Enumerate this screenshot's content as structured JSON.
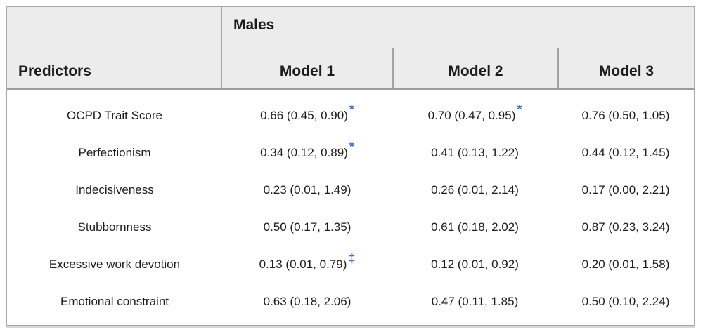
{
  "chart_data": {
    "type": "table",
    "group_header": "Males",
    "columns": [
      "Predictors",
      "Model 1",
      "Model 2",
      "Model 3"
    ],
    "rows": [
      [
        "OCPD Trait Score",
        "0.66 (0.45, 0.90)*",
        "0.70 (0.47, 0.95)*",
        "0.76 (0.50, 1.05)"
      ],
      [
        "Perfectionism",
        "0.34 (0.12, 0.89)*",
        "0.41 (0.13, 1.22)",
        "0.44 (0.12, 1.45)"
      ],
      [
        "Indecisiveness",
        "0.23 (0.01, 1.49)",
        "0.26 (0.01, 2.14)",
        "0.17 (0.00, 2.21)"
      ],
      [
        "Stubbornness",
        "0.50 (0.17, 1.35)",
        "0.61 (0.18, 2.02)",
        "0.87 (0.23, 3.24)"
      ],
      [
        "Excessive work devotion",
        "0.13 (0.01, 0.79)‡",
        "0.12 (0.01, 0.92)",
        "0.20 (0.01, 1.58)"
      ],
      [
        "Emotional constraint",
        "0.63 (0.18, 2.06)",
        "0.47 (0.11, 1.85)",
        "0.50 (0.10, 2.24)"
      ]
    ],
    "legend_position": "none",
    "grid": false
  },
  "table": {
    "predictors_header": "Predictors",
    "group_header": "Males",
    "model_headers": [
      "Model 1",
      "Model 2",
      "Model 3"
    ],
    "rows": [
      {
        "predictor": "OCPD Trait Score",
        "values": [
          {
            "text": "0.66 (0.45, 0.90)",
            "sup": "*"
          },
          {
            "text": "0.70 (0.47, 0.95)",
            "sup": "*"
          },
          {
            "text": "0.76 (0.50, 1.05)",
            "sup": ""
          }
        ]
      },
      {
        "predictor": "Perfectionism",
        "values": [
          {
            "text": "0.34 (0.12, 0.89)",
            "sup": "*"
          },
          {
            "text": "0.41 (0.13, 1.22)",
            "sup": ""
          },
          {
            "text": "0.44 (0.12, 1.45)",
            "sup": ""
          }
        ]
      },
      {
        "predictor": "Indecisiveness",
        "values": [
          {
            "text": "0.23 (0.01, 1.49)",
            "sup": ""
          },
          {
            "text": "0.26 (0.01, 2.14)",
            "sup": ""
          },
          {
            "text": "0.17 (0.00, 2.21)",
            "sup": ""
          }
        ]
      },
      {
        "predictor": "Stubbornness",
        "values": [
          {
            "text": "0.50 (0.17, 1.35)",
            "sup": ""
          },
          {
            "text": "0.61 (0.18, 2.02)",
            "sup": ""
          },
          {
            "text": "0.87 (0.23, 3.24)",
            "sup": ""
          }
        ]
      },
      {
        "predictor": "Excessive work devotion",
        "values": [
          {
            "text": "0.13 (0.01, 0.79)",
            "sup": "‡"
          },
          {
            "text": "0.12 (0.01, 0.92)",
            "sup": ""
          },
          {
            "text": "0.20 (0.01, 1.58)",
            "sup": ""
          }
        ]
      },
      {
        "predictor": "Emotional constraint",
        "values": [
          {
            "text": "0.63 (0.18, 2.06)",
            "sup": ""
          },
          {
            "text": "0.47 (0.11, 1.85)",
            "sup": ""
          },
          {
            "text": "0.50 (0.10, 2.24)",
            "sup": ""
          }
        ]
      }
    ],
    "colors": {
      "header_bg": "#ececec",
      "border": "#a9a9a9",
      "header_rule": "#9c9c9c",
      "text": "#1c1c1c",
      "significance_marker": "#3c6dc5"
    }
  }
}
